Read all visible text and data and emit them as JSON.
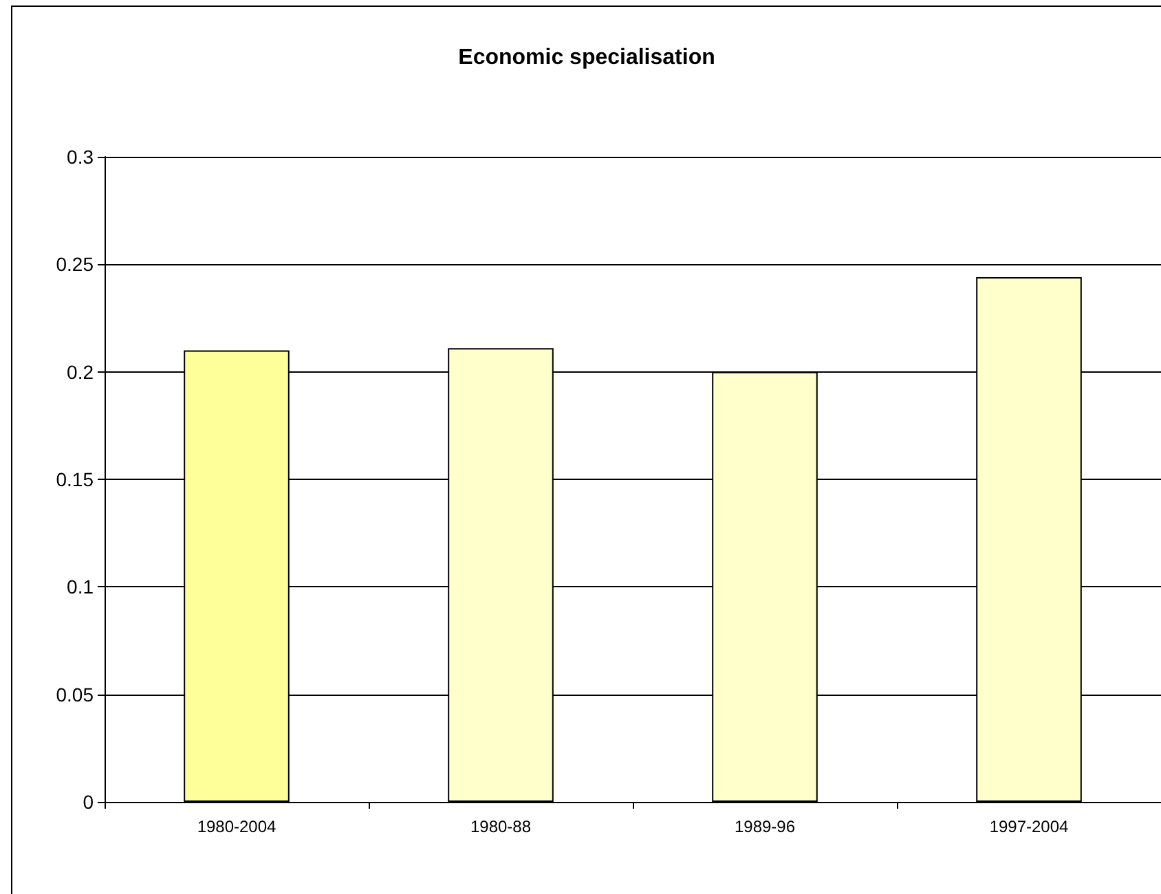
{
  "chart_data": {
    "type": "bar",
    "title": "Economic specialisation",
    "categories": [
      "1980-2004",
      "1980-88",
      "1989-96",
      "1997-2004"
    ],
    "values": [
      0.21,
      0.211,
      0.2,
      0.244
    ],
    "colors": [
      "#ffff99",
      "#ffffcc",
      "#ffffcc",
      "#ffffcc"
    ],
    "ylim": [
      0,
      0.3
    ],
    "yticks": [
      0,
      0.05,
      0.1,
      0.15,
      0.2,
      0.25,
      0.3
    ],
    "grid": "y"
  }
}
